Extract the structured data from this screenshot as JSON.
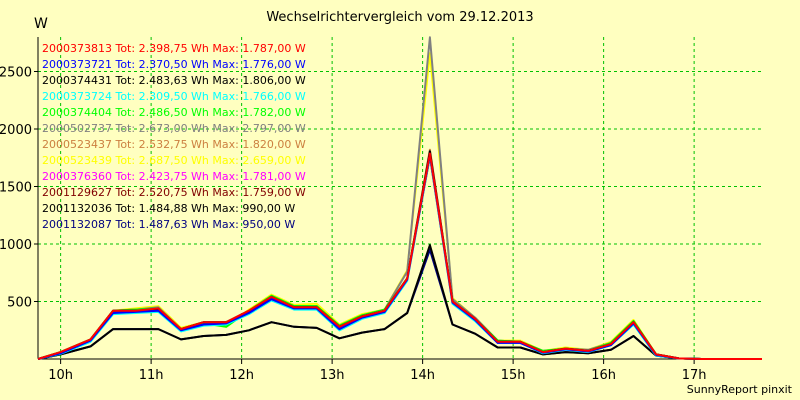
{
  "title": "Wechselrichtervergleich vom 29.12.2013",
  "y_unit": "W",
  "footer": "SunnyReport pinxit",
  "chart_data": {
    "type": "line",
    "title": "Wechselrichtervergleich vom 29.12.2013",
    "ylabel": "W",
    "ylim": [
      0,
      2800
    ],
    "xlim": [
      9.75,
      17.75
    ],
    "grid": true,
    "x_ticks": [
      10,
      11,
      12,
      13,
      14,
      15,
      16,
      17
    ],
    "x_tick_labels": [
      "10h",
      "11h",
      "12h",
      "13h",
      "14h",
      "15h",
      "16h",
      "17h"
    ],
    "y_ticks": [
      500,
      1000,
      1500,
      2000,
      2500
    ],
    "x": [
      9.75,
      10.0,
      10.33,
      10.58,
      10.83,
      11.08,
      11.33,
      11.58,
      11.83,
      12.08,
      12.33,
      12.58,
      12.83,
      13.08,
      13.33,
      13.58,
      13.83,
      14.08,
      14.33,
      14.58,
      14.83,
      15.08,
      15.33,
      15.58,
      15.83,
      16.08,
      16.33,
      16.58,
      16.83,
      17.08,
      17.33,
      17.58,
      17.75
    ],
    "series": [
      {
        "name": "2000373813",
        "total": "2.398,75",
        "max": "1.787,00",
        "color": "#ff0000",
        "values": [
          0,
          60,
          170,
          420,
          420,
          440,
          260,
          320,
          320,
          420,
          540,
          450,
          450,
          280,
          370,
          420,
          700,
          1787,
          500,
          350,
          150,
          150,
          60,
          90,
          70,
          130,
          320,
          40,
          5,
          0,
          0,
          0,
          0
        ]
      },
      {
        "name": "2000373721",
        "total": "2.370,50",
        "max": "1.776,00",
        "color": "#0000ff",
        "values": [
          0,
          50,
          160,
          400,
          410,
          420,
          250,
          300,
          310,
          400,
          520,
          440,
          440,
          260,
          360,
          410,
          690,
          1776,
          490,
          340,
          140,
          140,
          55,
          85,
          65,
          120,
          310,
          35,
          5,
          0,
          0,
          0,
          0
        ]
      },
      {
        "name": "2000374431",
        "total": "2.483,63",
        "max": "1.806,00",
        "color": "#000000",
        "values": [
          0,
          55,
          165,
          420,
          420,
          430,
          260,
          320,
          320,
          410,
          540,
          450,
          450,
          280,
          370,
          420,
          700,
          1806,
          500,
          350,
          150,
          150,
          60,
          90,
          70,
          130,
          320,
          40,
          5,
          0,
          0,
          0,
          0
        ]
      },
      {
        "name": "2000373724",
        "total": "2.309,50",
        "max": "1.766,00",
        "color": "#00ffff",
        "values": [
          0,
          45,
          150,
          390,
          400,
          410,
          240,
          290,
          300,
          390,
          510,
          430,
          430,
          250,
          350,
          400,
          680,
          1766,
          480,
          330,
          140,
          140,
          50,
          80,
          60,
          120,
          300,
          30,
          5,
          0,
          0,
          0,
          0
        ]
      },
      {
        "name": "2000374404",
        "total": "2.486,50",
        "max": "1.782,00",
        "color": "#00ff00",
        "values": [
          0,
          60,
          170,
          420,
          430,
          440,
          260,
          310,
          280,
          420,
          550,
          460,
          460,
          290,
          380,
          430,
          700,
          1782,
          500,
          350,
          160,
          150,
          70,
          90,
          70,
          140,
          330,
          40,
          5,
          0,
          0,
          0,
          0
        ]
      },
      {
        "name": "2000502737",
        "total": "2.673,00",
        "max": "2.797,00",
        "color": "#808080",
        "values": [
          0,
          60,
          170,
          420,
          430,
          450,
          260,
          320,
          320,
          420,
          550,
          460,
          460,
          290,
          380,
          430,
          760,
          2797,
          520,
          360,
          160,
          150,
          70,
          90,
          80,
          140,
          330,
          40,
          5,
          0,
          0,
          0,
          0
        ]
      },
      {
        "name": "2000523437",
        "total": "2.532,75",
        "max": "1.820,00",
        "color": "#cc8040",
        "values": [
          0,
          60,
          170,
          420,
          430,
          440,
          260,
          320,
          320,
          420,
          540,
          450,
          460,
          280,
          370,
          420,
          700,
          1820,
          500,
          350,
          150,
          150,
          60,
          90,
          70,
          130,
          320,
          40,
          5,
          0,
          0,
          0,
          0
        ]
      },
      {
        "name": "2000523439",
        "total": "2.687,50",
        "max": "2.659,00",
        "color": "#ffff00",
        "values": [
          0,
          60,
          170,
          420,
          440,
          460,
          270,
          320,
          280,
          430,
          560,
          470,
          480,
          300,
          390,
          430,
          770,
          2659,
          530,
          360,
          160,
          160,
          70,
          100,
          80,
          150,
          340,
          40,
          5,
          0,
          0,
          0,
          0
        ]
      },
      {
        "name": "2000376360",
        "total": "2.423,75",
        "max": "1.781,00",
        "color": "#ff00ff",
        "values": [
          0,
          55,
          165,
          410,
          420,
          430,
          250,
          310,
          310,
          410,
          530,
          440,
          450,
          270,
          360,
          410,
          690,
          1781,
          490,
          340,
          150,
          140,
          60,
          90,
          70,
          130,
          320,
          40,
          5,
          0,
          0,
          0,
          0
        ]
      },
      {
        "name": "2001129627",
        "total": "2.520,75",
        "max": "1.759,00",
        "color": "#800000",
        "values": [
          0,
          55,
          165,
          410,
          420,
          430,
          250,
          310,
          310,
          410,
          530,
          440,
          450,
          270,
          360,
          410,
          690,
          1759,
          490,
          340,
          150,
          140,
          60,
          90,
          70,
          130,
          320,
          40,
          5,
          0,
          0,
          0,
          0
        ]
      },
      {
        "name": "2001132036",
        "total": "1.484,88",
        "max": "990,00",
        "color": "#000000",
        "values": [
          0,
          40,
          110,
          260,
          260,
          260,
          170,
          200,
          210,
          250,
          320,
          280,
          270,
          180,
          230,
          260,
          400,
          990,
          300,
          220,
          100,
          100,
          40,
          60,
          50,
          80,
          200,
          30,
          5,
          0,
          0,
          0,
          0
        ]
      },
      {
        "name": "2001132087",
        "total": "1.487,63",
        "max": "950,00",
        "color": "#000080",
        "values": [
          0,
          40,
          110,
          260,
          260,
          260,
          170,
          200,
          210,
          250,
          320,
          280,
          270,
          180,
          230,
          260,
          400,
          950,
          300,
          220,
          100,
          100,
          40,
          60,
          50,
          80,
          200,
          30,
          5,
          0,
          0,
          0,
          0
        ]
      }
    ]
  }
}
